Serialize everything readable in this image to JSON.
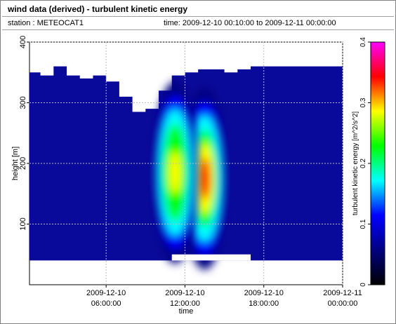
{
  "header": {
    "title": "wind data (derived) - turbulent kinetic energy",
    "station": "station : METEOCAT1",
    "timerange": "time: 2009-12-10 00:10:00 to 2009-12-11 00:00:00"
  },
  "chart_data": {
    "type": "heatmap",
    "title": "wind data (derived) - turbulent kinetic energy",
    "xlabel": "time",
    "ylabel": "height [m]",
    "colorbar_label": "turbulent kinetic energy [m^2/s^2]",
    "xlim": [
      "2009-12-10 00:10:00",
      "2009-12-11 00:00:00"
    ],
    "ylim": [
      0,
      400
    ],
    "clim": [
      0,
      0.4
    ],
    "grid": true,
    "x_ticks": [
      {
        "value": "2009-12-10 06:00:00",
        "line1": "2009-12-10",
        "line2": "06:00:00"
      },
      {
        "value": "2009-12-10 12:00:00",
        "line1": "2009-12-10",
        "line2": "12:00:00"
      },
      {
        "value": "2009-12-10 18:00:00",
        "line1": "2009-12-10",
        "line2": "18:00:00"
      },
      {
        "value": "2009-12-11 00:00:00",
        "line1": "2009-12-11",
        "line2": "00:00:00"
      }
    ],
    "y_ticks": [
      "100",
      "200",
      "300",
      "400"
    ],
    "colorbar_ticks": [
      "0",
      "0.1",
      "0.2",
      "0.3",
      "0.4"
    ],
    "colormap": [
      "#000000",
      "#000080",
      "#0000ff",
      "#00ffff",
      "#00ff00",
      "#ffff00",
      "#ff0000",
      "#ff00ff"
    ],
    "data_extent": {
      "bottom_height_m": 40,
      "top_height_m_by_hour": [
        350,
        345,
        360,
        345,
        340,
        345,
        335,
        310,
        285,
        290,
        320,
        345,
        350,
        355,
        355,
        350,
        355,
        360,
        360,
        360
      ],
      "gap_near_surface": {
        "from": "2009-12-10 11:00:00",
        "to": "2009-12-10 17:00:00",
        "height_m": 50
      }
    },
    "features": [
      {
        "name": "tke-peak-east",
        "time": "2009-12-10 13:30:00",
        "height_m": 175,
        "value": 0.32
      },
      {
        "name": "tke-peak-west",
        "time": "2009-12-10 11:15:00",
        "height_m": 185,
        "value": 0.27
      }
    ]
  }
}
